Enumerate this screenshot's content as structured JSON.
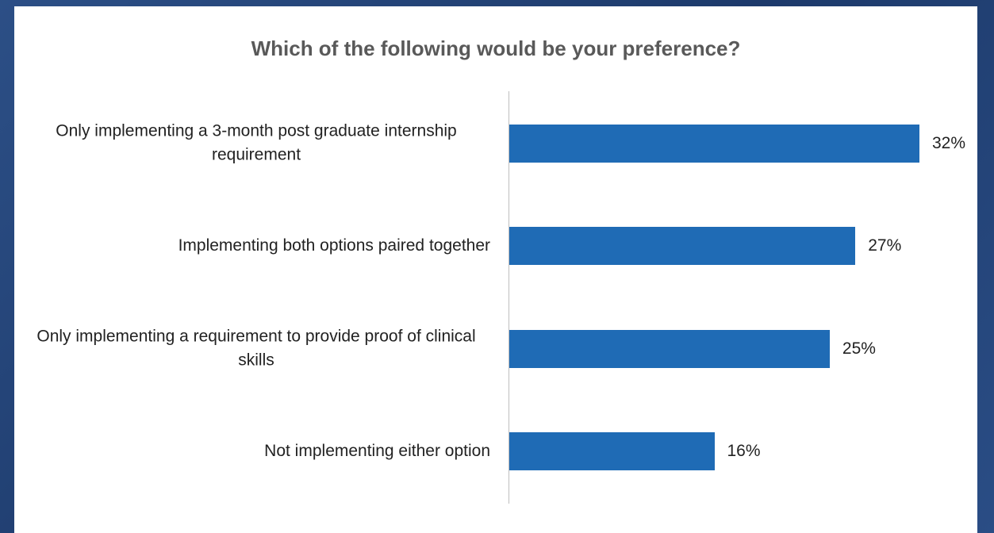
{
  "chart_data": {
    "type": "bar",
    "orientation": "horizontal",
    "title": "Which of the following would be your preference?",
    "categories": [
      "Only implementing a 3-month post graduate internship requirement",
      "Implementing both options paired together",
      "Only implementing a requirement to provide proof of clinical skills",
      "Not implementing either option"
    ],
    "values": [
      32,
      27,
      25,
      16
    ],
    "value_labels": [
      "32%",
      "27%",
      "25%",
      "16%"
    ],
    "color": "#1f6bb5"
  }
}
